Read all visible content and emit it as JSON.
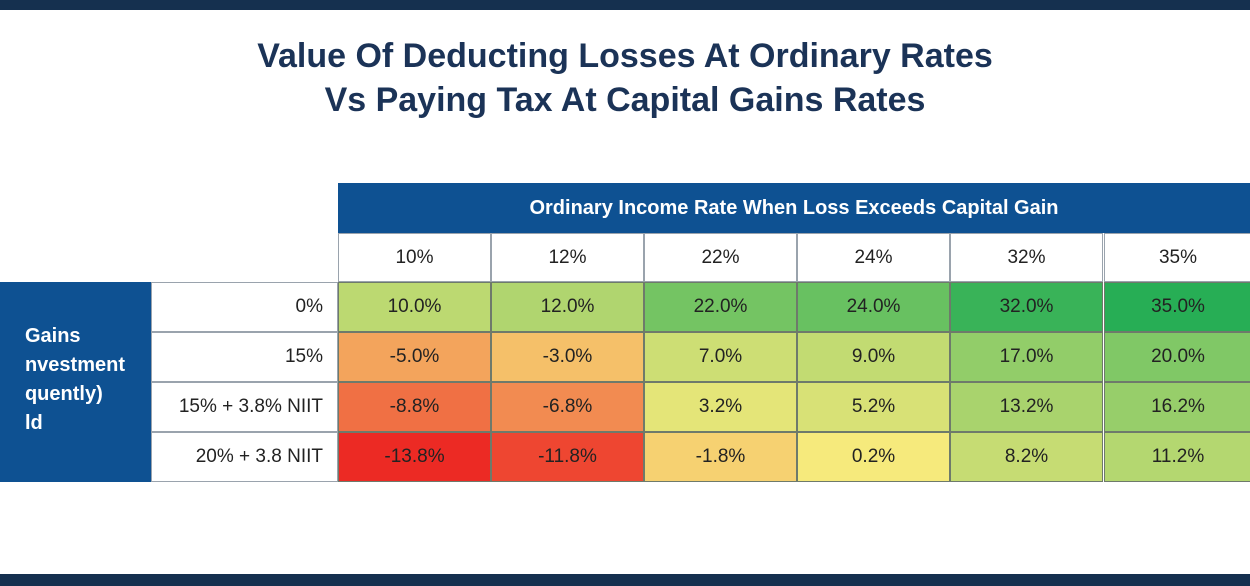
{
  "title": {
    "line1": "Value Of Deducting Losses At Ordinary Rates",
    "line2": "Vs Paying Tax At Capital Gains Rates"
  },
  "chart_data": {
    "type": "heatmap",
    "column_group_label": "Ordinary Income Rate When Loss Exceeds Capital Gain",
    "row_group_label": [
      "Gains",
      "nvestment",
      "quently)",
      "ld"
    ],
    "columns": [
      "10%",
      "12%",
      "22%",
      "24%",
      "32%",
      "35%"
    ],
    "rows": [
      "0%",
      "15%",
      "15% + 3.8% NIIT",
      "20% + 3.8 NIIT"
    ],
    "values": [
      [
        10.0,
        12.0,
        22.0,
        24.0,
        32.0,
        35.0
      ],
      [
        -5.0,
        -3.0,
        7.0,
        9.0,
        17.0,
        20.0
      ],
      [
        -8.8,
        -6.8,
        3.2,
        5.2,
        13.2,
        16.2
      ],
      [
        -13.8,
        -11.8,
        -1.8,
        0.2,
        8.2,
        11.2
      ]
    ],
    "value_labels": [
      [
        "10.0%",
        "12.0%",
        "22.0%",
        "24.0%",
        "32.0%",
        "35.0%"
      ],
      [
        "-5.0%",
        "-3.0%",
        "7.0%",
        "9.0%",
        "17.0%",
        "20.0%"
      ],
      [
        "-8.8%",
        "-6.8%",
        "3.2%",
        "5.2%",
        "13.2%",
        "16.2%"
      ],
      [
        "-13.8%",
        "-11.8%",
        "-1.8%",
        "0.2%",
        "8.2%",
        "11.2%"
      ]
    ],
    "colors": {
      "header_band": "#0e5192",
      "frame_rules": "#15304f",
      "title_text": "#1b3357",
      "scale_low": "#ec2a24",
      "scale_mid": "#f7ea7c",
      "scale_high": "#27ae55"
    }
  }
}
